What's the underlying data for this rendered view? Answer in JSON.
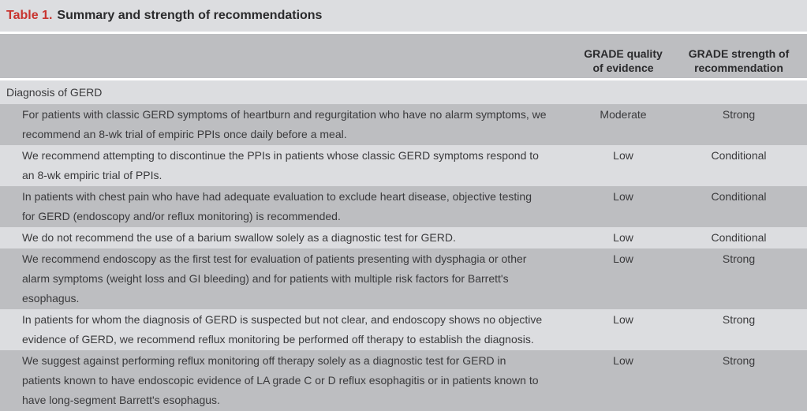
{
  "table": {
    "number": "Table 1.",
    "caption": "Summary and strength of recommendations",
    "headers": [
      "",
      "GRADE quality of evidence",
      "GRADE strength of recommendation"
    ],
    "section": "Diagnosis of GERD",
    "rows": [
      {
        "text": "For patients with classic GERD symptoms of heartburn and regurgitation who have no alarm symptoms, we recommend an 8-wk trial of empiric PPIs once daily before a meal.",
        "quality": "Moderate",
        "strength": "Strong"
      },
      {
        "text": "We recommend attempting to discontinue the PPIs in patients whose classic GERD symptoms respond to an 8-wk empiric trial of PPIs.",
        "quality": "Low",
        "strength": "Conditional"
      },
      {
        "text": "In patients with chest pain who have had adequate evaluation to exclude heart disease, objective testing for GERD (endoscopy and/or reflux monitoring) is recommended.",
        "quality": "Low",
        "strength": "Conditional"
      },
      {
        "text": "We do not recommend the use of a barium swallow solely as a diagnostic test for GERD.",
        "quality": "Low",
        "strength": "Conditional"
      },
      {
        "text": "We recommend endoscopy as the first test for evaluation of patients presenting with dysphagia or other alarm symptoms (weight loss and GI bleeding) and for patients with multiple risk factors for Barrett's esophagus.",
        "quality": "Low",
        "strength": "Strong"
      },
      {
        "text": "In patients for whom the diagnosis of GERD is suspected but not clear, and endoscopy shows no objective evidence of GERD, we recommend reflux monitoring be performed off therapy to establish the diagnosis.",
        "quality": "Low",
        "strength": "Strong"
      },
      {
        "text": "We suggest against performing reflux monitoring off therapy solely as a diagnostic test for GERD in patients known to have endoscopic evidence of LA grade C or D reflux esophagitis or in patients known to have long-segment Barrett's esophagus.",
        "quality": "Low",
        "strength": "Strong"
      }
    ]
  }
}
